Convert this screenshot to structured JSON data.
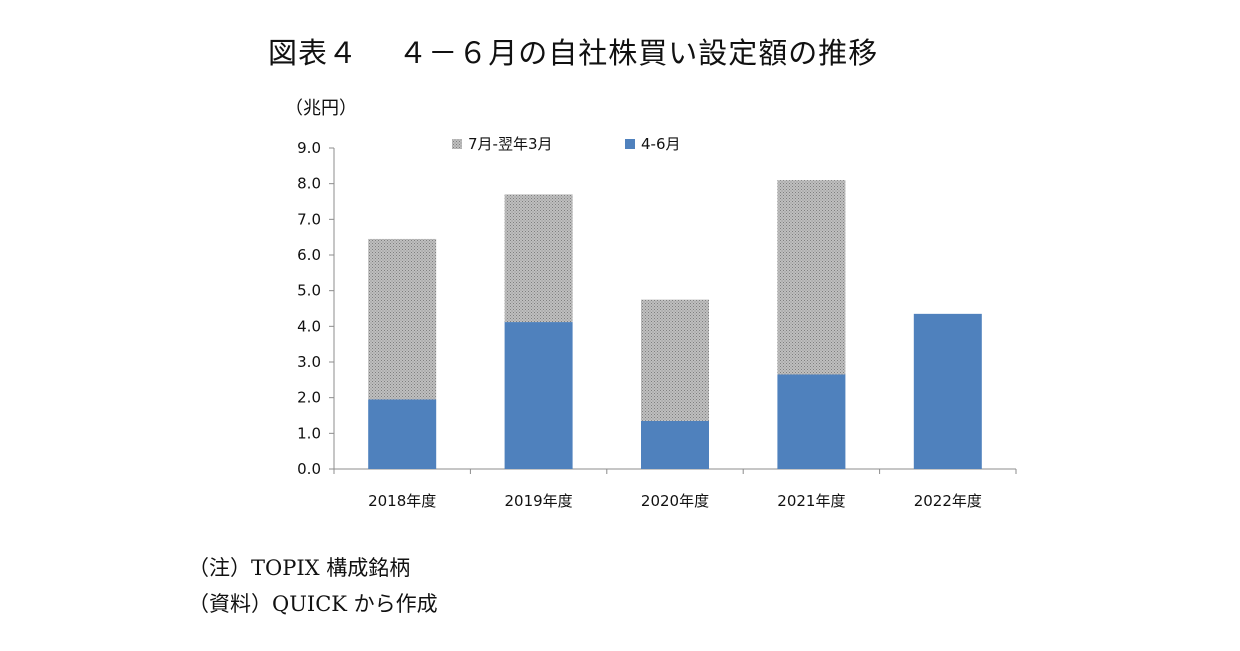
{
  "title": "図表４　 ４－６月の自社株買い設定額の推移",
  "notes": {
    "note1": "（注）TOPIX 構成銘柄",
    "note2": "（資料）QUICK から作成"
  },
  "colors": {
    "q1": "#4F81BD",
    "rest": "#A6A6A6",
    "axis": "#8C8C8C"
  },
  "chart_data": {
    "type": "bar",
    "stacked": true,
    "unit_label": "（兆円）",
    "categories": [
      "2018年度",
      "2019年度",
      "2020年度",
      "2021年度",
      "2022年度"
    ],
    "series": [
      {
        "name": "4-6月",
        "values": [
          1.95,
          4.12,
          1.35,
          2.65,
          4.35
        ]
      },
      {
        "name": "7月-翌年3月",
        "values": [
          4.5,
          3.58,
          3.4,
          5.45,
          0
        ]
      }
    ],
    "ylim": [
      0,
      9
    ],
    "yticks": [
      "0.0",
      "1.0",
      "2.0",
      "3.0",
      "4.0",
      "5.0",
      "6.0",
      "7.0",
      "8.0",
      "9.0"
    ],
    "legend_position": "top",
    "legend_order": [
      "7月-翌年3月",
      "4-6月"
    ],
    "grid": false
  }
}
